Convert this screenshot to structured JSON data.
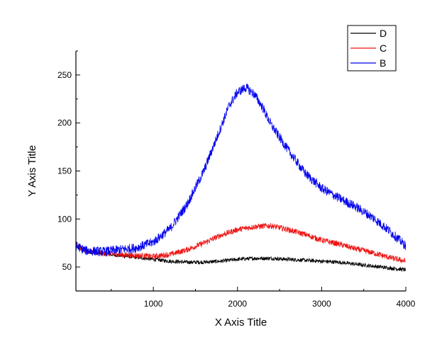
{
  "chart_data": {
    "type": "line",
    "title": "",
    "xlabel": "X Axis Title",
    "ylabel": "Y Axis Title",
    "xlim": [
      80,
      4000
    ],
    "ylim": [
      25,
      275
    ],
    "xticks": [
      1000,
      2000,
      3000,
      4000
    ],
    "xtick_labels": [
      "1000",
      "2000",
      "3000",
      "4000"
    ],
    "yticks": [
      50,
      100,
      150,
      200,
      250
    ],
    "ytick_labels": [
      "50",
      "100",
      "150",
      "200",
      "250"
    ],
    "grid": false,
    "legend_position": "top-right",
    "series": [
      {
        "name": "D",
        "color": "#000000",
        "noise": 2,
        "x": [
          80,
          200,
          400,
          600,
          800,
          1000,
          1200,
          1400,
          1600,
          1800,
          2000,
          2200,
          2400,
          2600,
          2800,
          3000,
          3200,
          3400,
          3600,
          3800,
          4000
        ],
        "values": [
          71,
          66,
          64,
          62,
          60,
          58,
          56,
          55,
          55,
          56,
          58,
          59,
          59,
          58,
          57,
          56,
          55,
          53,
          51,
          49,
          47
        ]
      },
      {
        "name": "C",
        "color": "#ee1111",
        "noise": 3,
        "x": [
          80,
          200,
          400,
          600,
          800,
          1000,
          1200,
          1400,
          1600,
          1800,
          2000,
          2200,
          2400,
          2600,
          2800,
          3000,
          3200,
          3400,
          3600,
          3800,
          4000
        ],
        "values": [
          72,
          67,
          64,
          63,
          62,
          61,
          63,
          68,
          75,
          83,
          89,
          92,
          93,
          89,
          84,
          78,
          74,
          69,
          65,
          60,
          56
        ]
      },
      {
        "name": "B",
        "color": "#0000ee",
        "noise": 5,
        "x": [
          80,
          200,
          400,
          600,
          800,
          1000,
          1200,
          1400,
          1600,
          1800,
          1900,
          2000,
          2100,
          2200,
          2300,
          2400,
          2600,
          2800,
          3000,
          3200,
          3400,
          3600,
          3800,
          4000
        ],
        "values": [
          72,
          67,
          66,
          68,
          70,
          76,
          90,
          115,
          150,
          195,
          218,
          232,
          237,
          230,
          216,
          198,
          172,
          148,
          132,
          122,
          113,
          102,
          88,
          72
        ]
      }
    ]
  }
}
